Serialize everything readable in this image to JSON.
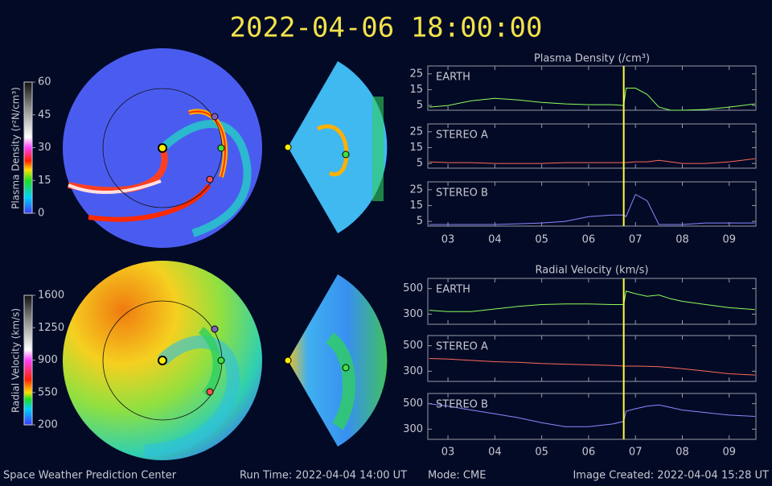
{
  "title": "2022-04-06 18:00:00",
  "colorbars": [
    {
      "label": "Plasma Density (r²N/cm³)",
      "lim": [
        0,
        60
      ],
      "ticks": [
        0,
        15,
        30,
        45,
        60
      ]
    },
    {
      "label": "Radial Velocity (km/s)",
      "lim": [
        200,
        1600
      ],
      "ticks": [
        200,
        550,
        900,
        1250,
        1600
      ]
    }
  ],
  "chart_data": [
    {
      "type": "line",
      "title": "Plasma Density (/cm³)",
      "x": [
        2.6,
        3,
        3.5,
        4,
        4.5,
        5,
        5.5,
        6,
        6.5,
        6.75,
        6.8,
        7,
        7.25,
        7.5,
        7.75,
        8,
        8.5,
        9,
        9.55
      ],
      "xlim": [
        2.57,
        9.57
      ],
      "xticks": [
        {
          "value": 3,
          "label": "03"
        },
        {
          "value": 4,
          "label": "04"
        },
        {
          "value": 5,
          "label": "05"
        },
        {
          "value": 6,
          "label": "06"
        },
        {
          "value": 7,
          "label": "07"
        },
        {
          "value": 8,
          "label": "08"
        },
        {
          "value": 9,
          "label": "09"
        }
      ],
      "ylim": [
        2,
        30
      ],
      "yticks": [
        5,
        15,
        25
      ],
      "vline": 6.75,
      "series": [
        {
          "name": "EARTH",
          "color": "#8cff5a",
          "values": [
            4,
            5,
            8,
            9.5,
            8.5,
            7,
            6,
            5.5,
            5.5,
            5,
            16,
            16,
            12,
            4,
            2,
            2,
            2.5,
            4,
            6
          ]
        },
        {
          "name": "STEREO A",
          "color": "#ff6a5a",
          "values": [
            6,
            5.5,
            5.5,
            5,
            5,
            5,
            5.5,
            5.5,
            5.5,
            5.5,
            5.5,
            6,
            6,
            7,
            6,
            5,
            5,
            6,
            8
          ]
        },
        {
          "name": "STEREO B",
          "color": "#8a8aff",
          "values": [
            3,
            3,
            3,
            3,
            3.5,
            4,
            5,
            8,
            9,
            9,
            8,
            22,
            18,
            3,
            3,
            3,
            4,
            4,
            4
          ]
        }
      ]
    },
    {
      "type": "line",
      "title": "Radial Velocity (km/s)",
      "x": [
        2.6,
        3,
        3.5,
        4,
        4.5,
        5,
        5.5,
        6,
        6.5,
        6.75,
        6.8,
        7,
        7.25,
        7.5,
        7.75,
        8,
        8.5,
        9,
        9.55
      ],
      "xlim": [
        2.57,
        9.57
      ],
      "xticks": [
        {
          "value": 3,
          "label": "03"
        },
        {
          "value": 4,
          "label": "04"
        },
        {
          "value": 5,
          "label": "05"
        },
        {
          "value": 6,
          "label": "06"
        },
        {
          "value": 7,
          "label": "07"
        },
        {
          "value": 8,
          "label": "08"
        },
        {
          "value": 9,
          "label": "09"
        }
      ],
      "ylim": [
        220,
        580
      ],
      "yticks": [
        300,
        500
      ],
      "vline": 6.75,
      "series": [
        {
          "name": "EARTH",
          "color": "#8cff5a",
          "values": [
            330,
            320,
            320,
            340,
            360,
            375,
            380,
            380,
            375,
            375,
            480,
            460,
            440,
            450,
            420,
            400,
            375,
            350,
            335
          ]
        },
        {
          "name": "STEREO A",
          "color": "#ff6a5a",
          "values": [
            400,
            395,
            385,
            375,
            370,
            360,
            355,
            350,
            345,
            340,
            340,
            340,
            338,
            335,
            328,
            320,
            300,
            280,
            270
          ]
        },
        {
          "name": "STEREO B",
          "color": "#8a8aff",
          "values": [
            500,
            480,
            450,
            420,
            390,
            350,
            320,
            320,
            340,
            360,
            440,
            460,
            480,
            490,
            470,
            450,
            430,
            410,
            400
          ]
        }
      ]
    }
  ],
  "footer": {
    "left": "Space Weather Prediction Center",
    "run_time": "Run Time: 2022-04-04 14:00 UT",
    "mode": "Mode: CME",
    "created": "Image Created: 2022-04-04 15:28 UT"
  }
}
